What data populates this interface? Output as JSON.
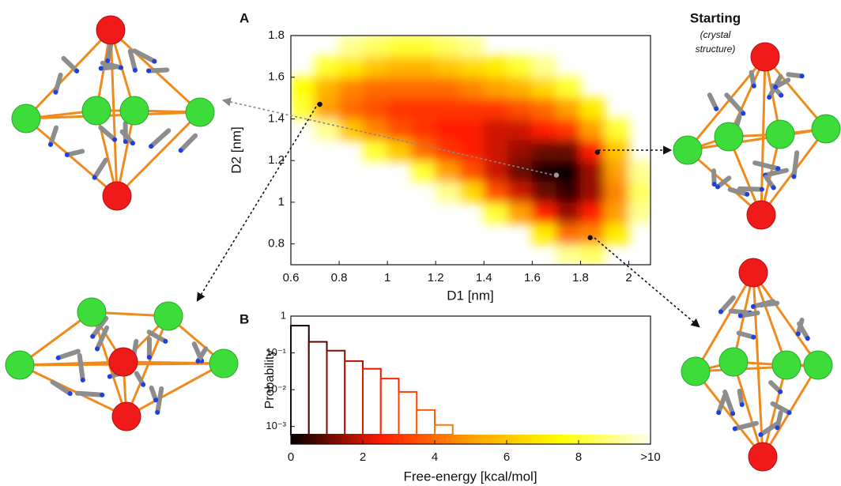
{
  "chart_data": [
    {
      "type": "heatmap",
      "panel_label": "A",
      "xlabel": "D1 [nm]",
      "ylabel": "D2 [nm]",
      "xlim": [
        0.6,
        2.09
      ],
      "ylim": [
        0.7,
        1.8
      ],
      "xticks": [
        0.6,
        0.8,
        1,
        1.2,
        1.4,
        1.6,
        1.8,
        2
      ],
      "yticks": [
        0.8,
        1,
        1.2,
        1.4,
        1.6,
        1.8
      ],
      "zlim": [
        0,
        10
      ],
      "colorscale": [
        "#000000",
        "#ff1a00",
        "#ffa000",
        "#ffff00",
        "#ffffee"
      ],
      "x": [
        0.65,
        0.75,
        0.85,
        0.95,
        1.05,
        1.15,
        1.25,
        1.35,
        1.45,
        1.55,
        1.65,
        1.75,
        1.85,
        1.95,
        2.05
      ],
      "y": [
        0.75,
        0.85,
        0.95,
        1.05,
        1.15,
        1.25,
        1.35,
        1.45,
        1.55,
        1.65,
        1.75
      ],
      "z": [
        [
          null,
          null,
          null,
          null,
          null,
          null,
          null,
          null,
          null,
          null,
          null,
          9,
          8.5,
          null,
          null
        ],
        [
          null,
          null,
          null,
          null,
          null,
          null,
          null,
          null,
          null,
          null,
          7,
          4,
          4.5,
          7,
          null
        ],
        [
          null,
          null,
          null,
          null,
          null,
          null,
          null,
          null,
          8,
          5,
          2.5,
          1.5,
          2.5,
          5,
          9
        ],
        [
          null,
          null,
          null,
          null,
          null,
          null,
          9,
          6.5,
          3.5,
          2,
          1,
          0.5,
          1.5,
          4.5,
          8.5
        ],
        [
          null,
          null,
          null,
          null,
          null,
          8,
          5,
          3.5,
          2,
          1,
          0.3,
          0,
          1.5,
          5,
          9
        ],
        [
          null,
          null,
          null,
          8,
          6,
          4,
          3,
          2.5,
          2,
          1.5,
          1,
          1,
          2.5,
          6,
          null
        ],
        [
          null,
          9,
          6,
          4.5,
          3.5,
          3,
          2.5,
          2.5,
          2,
          2,
          2.5,
          3,
          5,
          8,
          null
        ],
        [
          8,
          5,
          4,
          3.5,
          3,
          3,
          3,
          3,
          3,
          3.5,
          4,
          5,
          7,
          null,
          null
        ],
        [
          7.5,
          5.5,
          4.5,
          4,
          4,
          4,
          4,
          4.5,
          5,
          5.5,
          6.5,
          8,
          null,
          null,
          null
        ],
        [
          null,
          8,
          7,
          6,
          5.5,
          5.5,
          6,
          6.5,
          7,
          8,
          9,
          null,
          null,
          null,
          null
        ],
        [
          null,
          null,
          9,
          8.5,
          8,
          8,
          8.5,
          9,
          null,
          null,
          null,
          null,
          null,
          null,
          null
        ]
      ],
      "markers": {
        "x": [
          0.72,
          1.7,
          1.87,
          1.84
        ],
        "y": [
          1.47,
          1.13,
          1.24,
          0.83
        ],
        "colors": [
          "#111111",
          "#999999",
          "#111111",
          "#111111"
        ]
      },
      "title": "Starting",
      "caption": [
        "(crystal",
        "structure)"
      ]
    },
    {
      "type": "histogram",
      "panel_label": "B",
      "xlabel": "Free-energy [kcal/mol]",
      "ylabel": "Probability",
      "bins": [
        0,
        0.5,
        1,
        1.5,
        2,
        2.5,
        3,
        3.5,
        4,
        4.5
      ],
      "values": [
        0.55,
        0.2,
        0.115,
        0.06,
        0.037,
        0.02,
        0.0087,
        0.0028,
        0.0011
      ],
      "log_y": true,
      "xlim": [
        0,
        10
      ],
      "ylim": [
        0.0006,
        1
      ],
      "xticks": [
        0,
        2,
        4,
        6,
        8,
        {
          "value": 10,
          "label": ">10"
        }
      ],
      "yticks": [
        1,
        {
          "value": 0.1,
          "label": "10⁻¹"
        },
        {
          "value": 0.01,
          "label": "10⁻²"
        },
        {
          "value": 0.001,
          "label": "10⁻³"
        }
      ],
      "colorbar": true
    }
  ]
}
